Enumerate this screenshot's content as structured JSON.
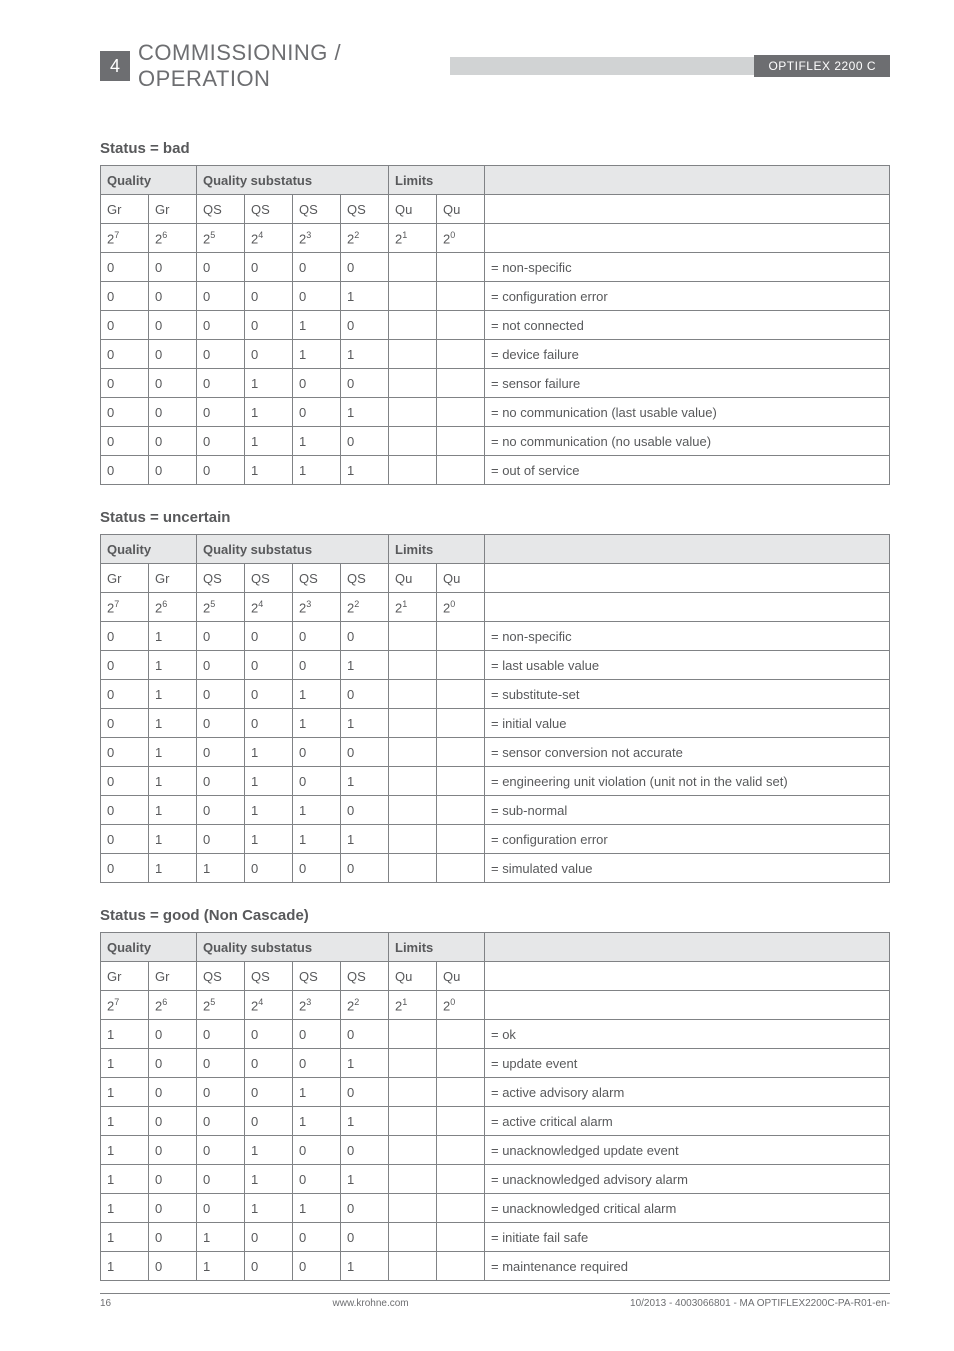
{
  "header": {
    "section_number": "4",
    "section_title": "COMMISSIONING / OPERATION",
    "doc_label": "OPTIFLEX 2200 C"
  },
  "common": {
    "col_quality": "Quality",
    "col_substatus": "Quality substatus",
    "col_limits": "Limits",
    "row_labels": {
      "gr": "Gr",
      "qs": "QS",
      "qu": "Qu"
    },
    "exponents": {
      "p7": "7",
      "p6": "6",
      "p5": "5",
      "p4": "4",
      "p3": "3",
      "p2": "2",
      "p1": "1",
      "p0": "0"
    }
  },
  "tables": {
    "bad": {
      "title": "Status = bad",
      "rows": [
        {
          "b": [
            "0",
            "0",
            "0",
            "0",
            "0",
            "0"
          ],
          "desc": "= non-specific"
        },
        {
          "b": [
            "0",
            "0",
            "0",
            "0",
            "0",
            "1"
          ],
          "desc": "= configuration error"
        },
        {
          "b": [
            "0",
            "0",
            "0",
            "0",
            "1",
            "0"
          ],
          "desc": "= not connected"
        },
        {
          "b": [
            "0",
            "0",
            "0",
            "0",
            "1",
            "1"
          ],
          "desc": "= device failure"
        },
        {
          "b": [
            "0",
            "0",
            "0",
            "1",
            "0",
            "0"
          ],
          "desc": "= sensor failure"
        },
        {
          "b": [
            "0",
            "0",
            "0",
            "1",
            "0",
            "1"
          ],
          "desc": "= no communication (last usable value)"
        },
        {
          "b": [
            "0",
            "0",
            "0",
            "1",
            "1",
            "0"
          ],
          "desc": "= no communication (no usable value)"
        },
        {
          "b": [
            "0",
            "0",
            "0",
            "1",
            "1",
            "1"
          ],
          "desc": "= out of service"
        }
      ]
    },
    "uncertain": {
      "title": "Status = uncertain",
      "rows": [
        {
          "b": [
            "0",
            "1",
            "0",
            "0",
            "0",
            "0"
          ],
          "desc": "= non-specific"
        },
        {
          "b": [
            "0",
            "1",
            "0",
            "0",
            "0",
            "1"
          ],
          "desc": "= last usable value"
        },
        {
          "b": [
            "0",
            "1",
            "0",
            "0",
            "1",
            "0"
          ],
          "desc": "= substitute-set"
        },
        {
          "b": [
            "0",
            "1",
            "0",
            "0",
            "1",
            "1"
          ],
          "desc": "= initial value"
        },
        {
          "b": [
            "0",
            "1",
            "0",
            "1",
            "0",
            "0"
          ],
          "desc": "= sensor conversion not accurate"
        },
        {
          "b": [
            "0",
            "1",
            "0",
            "1",
            "0",
            "1"
          ],
          "desc": "= engineering unit violation (unit not in the valid set)"
        },
        {
          "b": [
            "0",
            "1",
            "0",
            "1",
            "1",
            "0"
          ],
          "desc": "= sub-normal"
        },
        {
          "b": [
            "0",
            "1",
            "0",
            "1",
            "1",
            "1"
          ],
          "desc": "= configuration error"
        },
        {
          "b": [
            "0",
            "1",
            "1",
            "0",
            "0",
            "0"
          ],
          "desc": "= simulated value"
        }
      ]
    },
    "good": {
      "title": "Status = good (Non Cascade)",
      "rows": [
        {
          "b": [
            "1",
            "0",
            "0",
            "0",
            "0",
            "0"
          ],
          "desc": "= ok"
        },
        {
          "b": [
            "1",
            "0",
            "0",
            "0",
            "0",
            "1"
          ],
          "desc": "= update event"
        },
        {
          "b": [
            "1",
            "0",
            "0",
            "0",
            "1",
            "0"
          ],
          "desc": "= active advisory alarm"
        },
        {
          "b": [
            "1",
            "0",
            "0",
            "0",
            "1",
            "1"
          ],
          "desc": "= active critical alarm"
        },
        {
          "b": [
            "1",
            "0",
            "0",
            "1",
            "0",
            "0"
          ],
          "desc": "= unacknowledged update event"
        },
        {
          "b": [
            "1",
            "0",
            "0",
            "1",
            "0",
            "1"
          ],
          "desc": "= unacknowledged advisory alarm"
        },
        {
          "b": [
            "1",
            "0",
            "0",
            "1",
            "1",
            "0"
          ],
          "desc": "= unacknowledged critical alarm"
        },
        {
          "b": [
            "1",
            "0",
            "1",
            "0",
            "0",
            "0"
          ],
          "desc": "= initiate fail safe"
        },
        {
          "b": [
            "1",
            "0",
            "1",
            "0",
            "0",
            "1"
          ],
          "desc": "= maintenance required"
        }
      ]
    }
  },
  "footer": {
    "page": "16",
    "site": "www.krohne.com",
    "rev": "10/2013 - 4003066801 - MA OPTIFLEX2200C-PA-R01-en-"
  }
}
